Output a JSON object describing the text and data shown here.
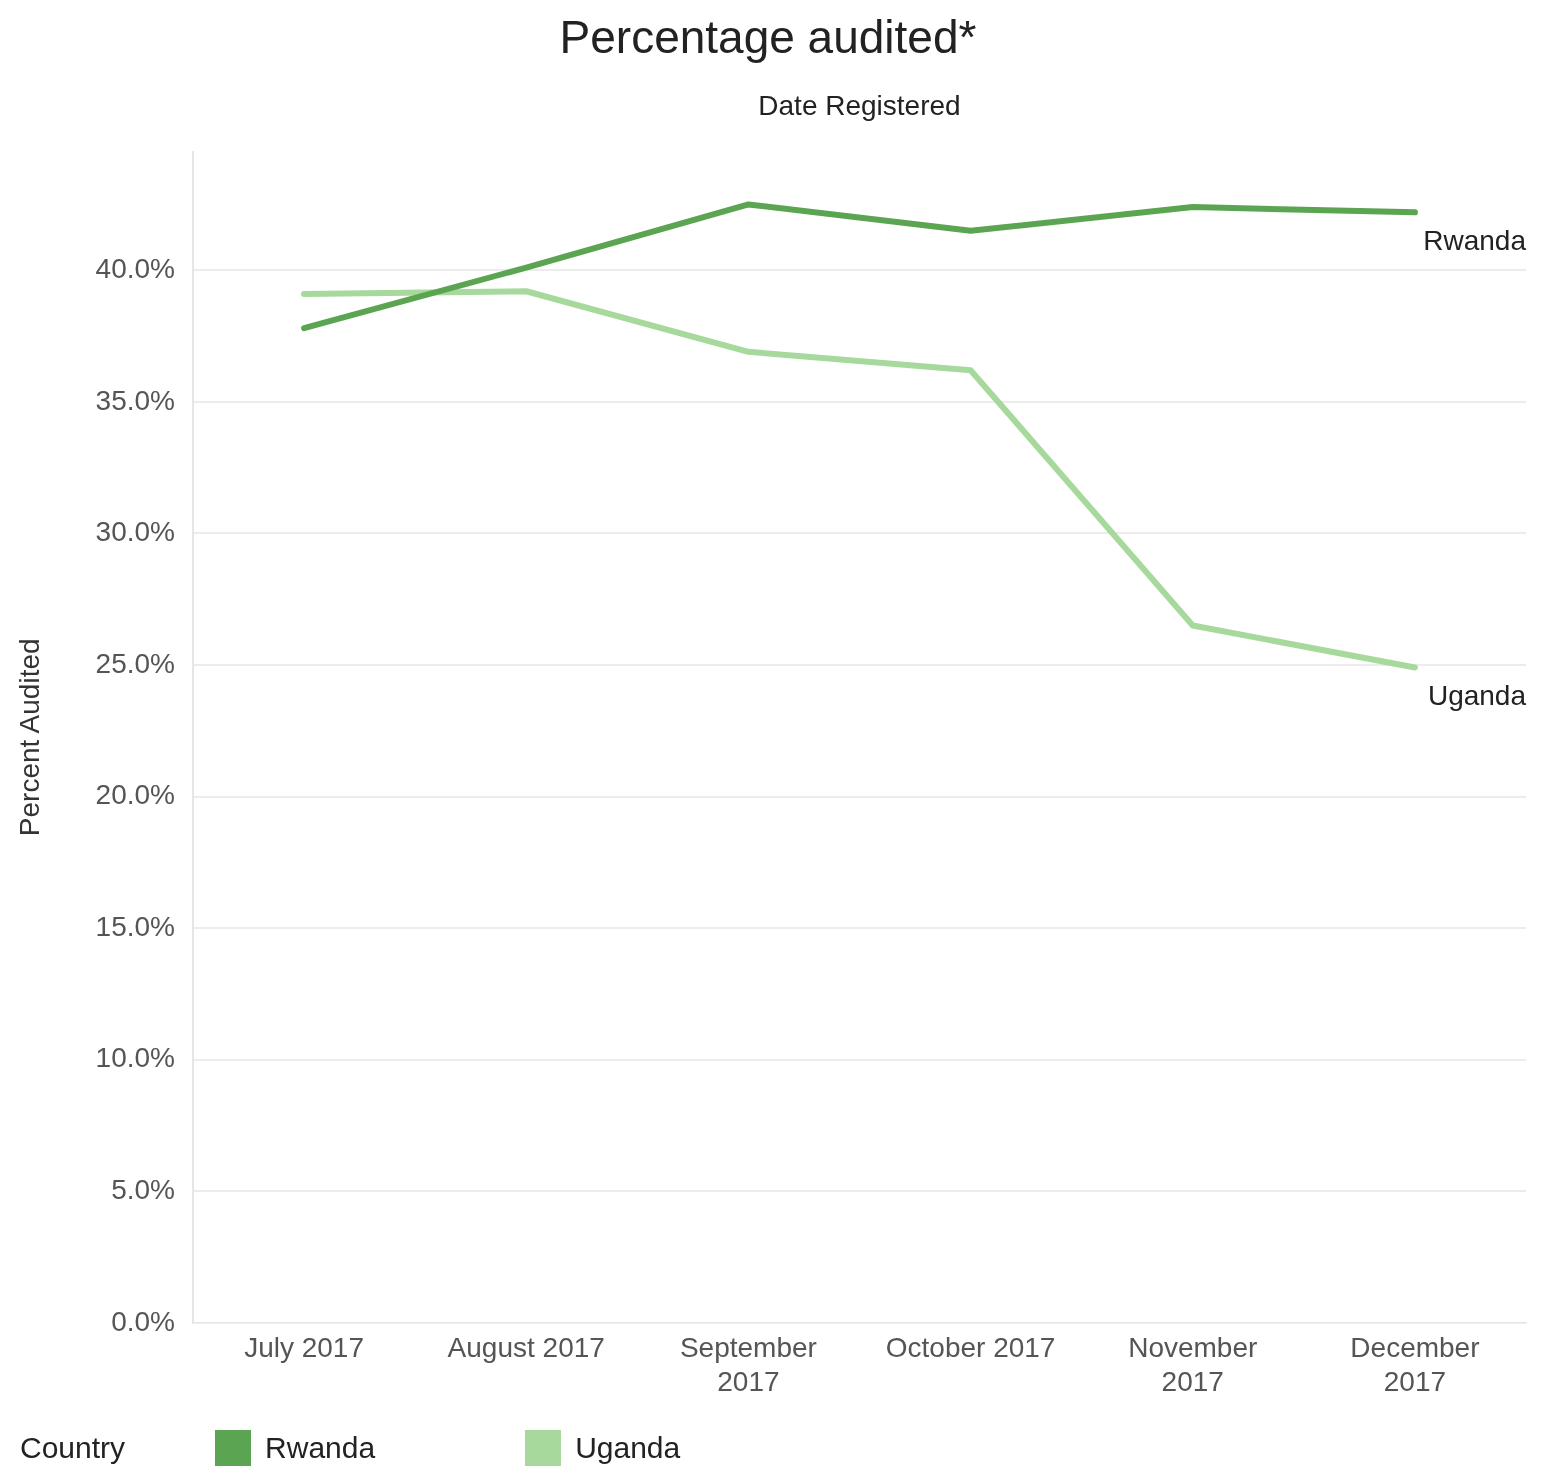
{
  "chart_data": {
    "type": "line",
    "title": "Percentage audited*",
    "xlabel": "Date Registered",
    "ylabel": "Percent Audited",
    "legend_title": "Country",
    "categories": [
      "July 2017",
      "August 2017",
      "September 2017",
      "October 2017",
      "November 2017",
      "December 2017"
    ],
    "series": [
      {
        "name": "Rwanda",
        "color": "#5ba552",
        "values": [
          37.8,
          40.1,
          42.5,
          41.5,
          42.4,
          42.2
        ]
      },
      {
        "name": "Uganda",
        "color": "#a6d99b",
        "values": [
          39.1,
          39.2,
          36.9,
          36.2,
          26.5,
          24.9
        ]
      }
    ],
    "ylim": [
      0,
      44.5
    ],
    "yticks": [
      {
        "value": 0,
        "label": "0.0%"
      },
      {
        "value": 5,
        "label": "5.0%"
      },
      {
        "value": 10,
        "label": "10.0%"
      },
      {
        "value": 15,
        "label": "15.0%"
      },
      {
        "value": 20,
        "label": "20.0%"
      },
      {
        "value": 25,
        "label": "25.0%"
      },
      {
        "value": 30,
        "label": "30.0%"
      },
      {
        "value": 35,
        "label": "35.0%"
      },
      {
        "value": 40,
        "label": "40.0%"
      }
    ],
    "grid": "y",
    "legend": "bottom left",
    "marker": "none",
    "line_style": "solid"
  }
}
